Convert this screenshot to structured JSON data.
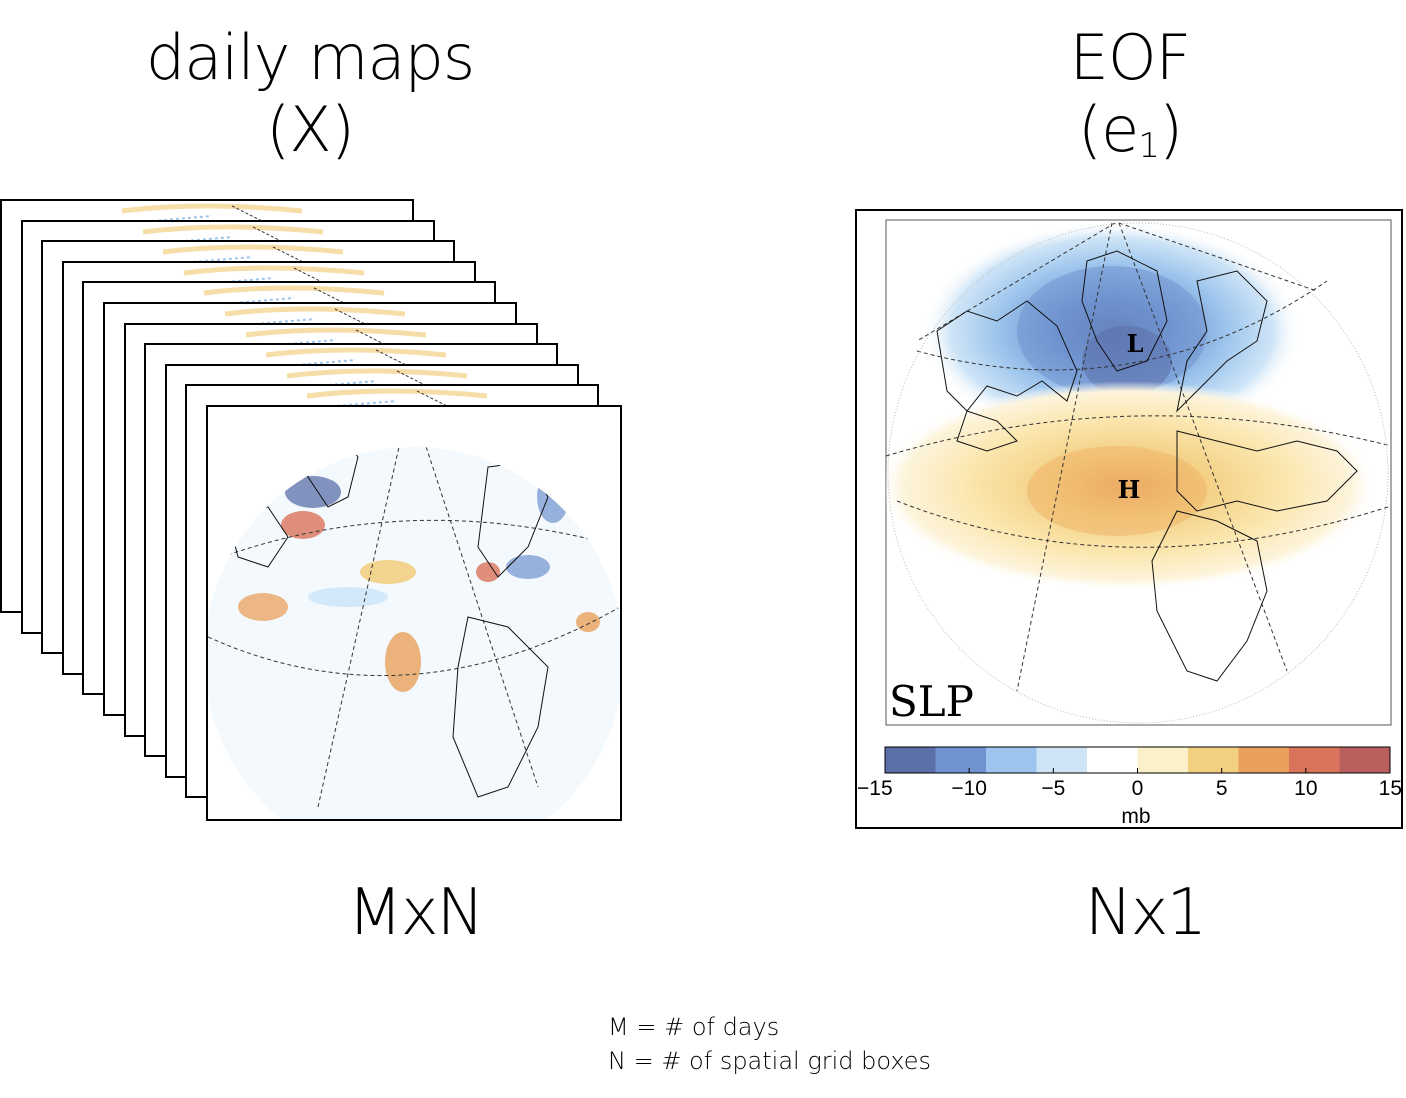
{
  "left": {
    "title_line1": "daily maps",
    "title_line2": "(X)",
    "dimension": "MxN",
    "frame_count": 11
  },
  "right": {
    "title_line1": "EOF",
    "title_line2_prefix": "(e",
    "title_line2_sub": "1",
    "title_line2_suffix": ")",
    "dimension": "Nx1",
    "field_label": "SLP",
    "low_label": "L",
    "high_label": "H",
    "colorbar": {
      "ticks": [
        "−15",
        "−10",
        "−5",
        "0",
        "5",
        "10",
        "15"
      ],
      "unit": "mb",
      "colors": [
        "#5b6fa8",
        "#6f93cf",
        "#9cc4ec",
        "#cfe5f7",
        "#ffffff",
        "#fbf0c8",
        "#f3cf82",
        "#e9a05b",
        "#d9735b",
        "#b9605c"
      ]
    }
  },
  "notes": {
    "line1": "M = # of days",
    "line2": "N = # of spatial grid boxes"
  }
}
